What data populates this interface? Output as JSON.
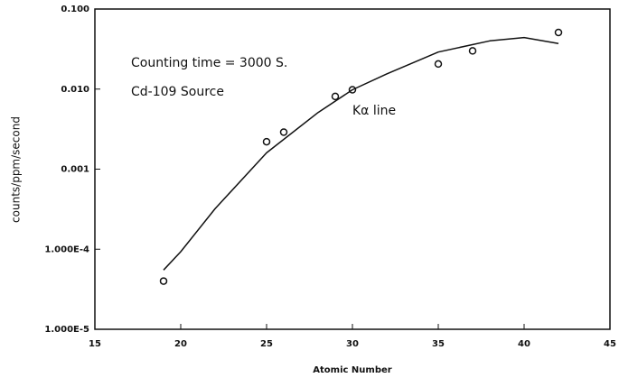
{
  "chart_data": {
    "type": "scatter",
    "x_label": "Atomic Number",
    "y_label": "counts/ppm/second",
    "annotations": [
      "Counting time = 3000 S.",
      "Cd-109 Source",
      "Kα line"
    ],
    "xlim": [
      15,
      45
    ],
    "xticks": [
      15,
      20,
      25,
      30,
      35,
      40,
      45
    ],
    "ylim": [
      1e-05,
      0.1
    ],
    "yscale": "log",
    "yticks": [
      {
        "value": 1e-05,
        "label": "1.000E-5"
      },
      {
        "value": 0.0001,
        "label": "1.000E-4"
      },
      {
        "value": 0.001,
        "label": "0.001"
      },
      {
        "value": 0.01,
        "label": "0.010"
      },
      {
        "value": 0.1,
        "label": "0.100"
      }
    ],
    "color": "#111111",
    "series": [
      {
        "mode": "markers",
        "x": [
          19,
          25,
          26,
          29,
          30,
          35,
          37,
          42
        ],
        "values": [
          4e-05,
          0.0022,
          0.0029,
          0.0081,
          0.0098,
          0.0206,
          0.03,
          0.051
        ]
      },
      {
        "mode": "line",
        "x": [
          19,
          20,
          22,
          25,
          28,
          30,
          32,
          35,
          38,
          40,
          42
        ],
        "values": [
          5.5e-05,
          9.3e-05,
          0.00032,
          0.0016,
          0.0051,
          0.0098,
          0.0155,
          0.029,
          0.04,
          0.044,
          0.037
        ]
      }
    ]
  }
}
